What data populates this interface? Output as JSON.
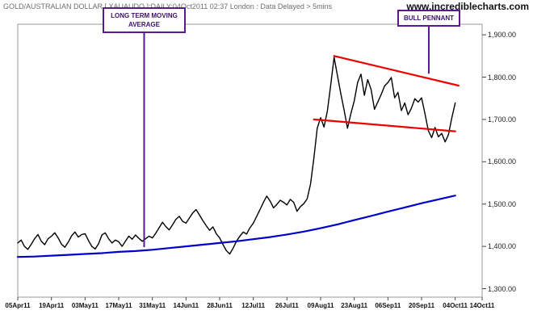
{
  "header": {
    "title": "GOLD/AUSTRALIAN DOLLAR [ XAUAUDO ]:DAILY:04Oct2011 02:37 London : Data Delayed > 5mins",
    "watermark": "www.incrediblecharts.com"
  },
  "chart_data": {
    "type": "line",
    "title": "GOLD/AUSTRALIAN DOLLAR [ XAUAUDO ]:DAILY:04Oct2011 02:37 London : Data Delayed > 5mins",
    "x_axis": {
      "unit": "trading days since 05Apr11",
      "tick_positions": [
        0,
        10,
        20,
        30,
        40,
        50,
        60,
        70,
        80,
        90,
        100,
        110,
        120,
        130,
        138
      ],
      "tick_labels": [
        "05Apr11",
        "19Apr11",
        "03May11",
        "17May11",
        "31May11",
        "14Jun11",
        "28Jun11",
        "12Jul11",
        "26Jul11",
        "09Aug11",
        "23Aug11",
        "06Sep11",
        "20Sep11",
        "04Oct11",
        "14Oct11"
      ]
    },
    "y_axis": {
      "tick_values": [
        1900,
        1800,
        1700,
        1600,
        1500,
        1400,
        1300
      ],
      "tick_labels": [
        "1,900.00",
        "1,800.00",
        "1,700.00",
        "1,600.00",
        "1,500.00",
        "1,400.00",
        "1,300.00"
      ],
      "range": [
        1280,
        1925
      ]
    },
    "x_range": [
      0,
      138
    ],
    "grid": false,
    "legend": "none",
    "series": [
      {
        "name": "xauaud-daily-close",
        "color": "#000000",
        "width": 1.4,
        "points": [
          [
            0,
            1408
          ],
          [
            1,
            1415
          ],
          [
            2,
            1400
          ],
          [
            3,
            1393
          ],
          [
            4,
            1405
          ],
          [
            5,
            1418
          ],
          [
            6,
            1428
          ],
          [
            7,
            1412
          ],
          [
            8,
            1404
          ],
          [
            9,
            1418
          ],
          [
            10,
            1424
          ],
          [
            11,
            1432
          ],
          [
            12,
            1420
          ],
          [
            13,
            1405
          ],
          [
            14,
            1398
          ],
          [
            15,
            1410
          ],
          [
            16,
            1425
          ],
          [
            17,
            1434
          ],
          [
            18,
            1422
          ],
          [
            19,
            1428
          ],
          [
            20,
            1430
          ],
          [
            21,
            1414
          ],
          [
            22,
            1400
          ],
          [
            23,
            1394
          ],
          [
            24,
            1406
          ],
          [
            25,
            1427
          ],
          [
            26,
            1432
          ],
          [
            27,
            1418
          ],
          [
            28,
            1408
          ],
          [
            29,
            1415
          ],
          [
            30,
            1411
          ],
          [
            31,
            1400
          ],
          [
            32,
            1412
          ],
          [
            33,
            1424
          ],
          [
            34,
            1417
          ],
          [
            35,
            1427
          ],
          [
            36,
            1419
          ],
          [
            37,
            1412
          ],
          [
            38,
            1418
          ],
          [
            39,
            1424
          ],
          [
            40,
            1420
          ],
          [
            41,
            1431
          ],
          [
            42,
            1444
          ],
          [
            43,
            1457
          ],
          [
            44,
            1447
          ],
          [
            45,
            1439
          ],
          [
            46,
            1451
          ],
          [
            47,
            1464
          ],
          [
            48,
            1471
          ],
          [
            49,
            1459
          ],
          [
            50,
            1455
          ],
          [
            51,
            1467
          ],
          [
            52,
            1479
          ],
          [
            53,
            1487
          ],
          [
            54,
            1474
          ],
          [
            55,
            1461
          ],
          [
            56,
            1449
          ],
          [
            57,
            1438
          ],
          [
            58,
            1446
          ],
          [
            59,
            1430
          ],
          [
            60,
            1420
          ],
          [
            61,
            1404
          ],
          [
            62,
            1390
          ],
          [
            63,
            1382
          ],
          [
            64,
            1396
          ],
          [
            65,
            1412
          ],
          [
            66,
            1424
          ],
          [
            67,
            1434
          ],
          [
            68,
            1429
          ],
          [
            69,
            1444
          ],
          [
            70,
            1455
          ],
          [
            71,
            1471
          ],
          [
            72,
            1487
          ],
          [
            73,
            1504
          ],
          [
            74,
            1519
          ],
          [
            75,
            1507
          ],
          [
            76,
            1491
          ],
          [
            77,
            1499
          ],
          [
            78,
            1509
          ],
          [
            79,
            1504
          ],
          [
            80,
            1498
          ],
          [
            81,
            1511
          ],
          [
            82,
            1504
          ],
          [
            83,
            1483
          ],
          [
            84,
            1494
          ],
          [
            85,
            1501
          ],
          [
            86,
            1512
          ],
          [
            87,
            1547
          ],
          [
            88,
            1609
          ],
          [
            89,
            1679
          ],
          [
            90,
            1704
          ],
          [
            91,
            1682
          ],
          [
            92,
            1719
          ],
          [
            93,
            1781
          ],
          [
            94,
            1847
          ],
          [
            95,
            1804
          ],
          [
            96,
            1761
          ],
          [
            97,
            1721
          ],
          [
            98,
            1679
          ],
          [
            99,
            1714
          ],
          [
            100,
            1744
          ],
          [
            101,
            1787
          ],
          [
            102,
            1807
          ],
          [
            103,
            1757
          ],
          [
            104,
            1794
          ],
          [
            105,
            1771
          ],
          [
            106,
            1724
          ],
          [
            107,
            1741
          ],
          [
            108,
            1759
          ],
          [
            109,
            1779
          ],
          [
            110,
            1787
          ],
          [
            111,
            1799
          ],
          [
            112,
            1751
          ],
          [
            113,
            1764
          ],
          [
            114,
            1721
          ],
          [
            115,
            1739
          ],
          [
            116,
            1711
          ],
          [
            117,
            1727
          ],
          [
            118,
            1749
          ],
          [
            119,
            1741
          ],
          [
            120,
            1751
          ],
          [
            121,
            1714
          ],
          [
            122,
            1674
          ],
          [
            123,
            1657
          ],
          [
            124,
            1681
          ],
          [
            125,
            1659
          ],
          [
            126,
            1667
          ],
          [
            127,
            1647
          ],
          [
            128,
            1664
          ],
          [
            129,
            1704
          ],
          [
            130,
            1739
          ]
        ]
      },
      {
        "name": "long-term-moving-average",
        "color": "#0000cc",
        "width": 2.2,
        "points": [
          [
            0,
            1375
          ],
          [
            5,
            1376
          ],
          [
            10,
            1378
          ],
          [
            15,
            1380
          ],
          [
            20,
            1382
          ],
          [
            25,
            1384
          ],
          [
            30,
            1387
          ],
          [
            35,
            1389
          ],
          [
            40,
            1392
          ],
          [
            45,
            1396
          ],
          [
            50,
            1400
          ],
          [
            55,
            1404
          ],
          [
            60,
            1408
          ],
          [
            65,
            1412
          ],
          [
            70,
            1417
          ],
          [
            75,
            1422
          ],
          [
            80,
            1428
          ],
          [
            85,
            1435
          ],
          [
            90,
            1443
          ],
          [
            95,
            1452
          ],
          [
            100,
            1462
          ],
          [
            105,
            1472
          ],
          [
            110,
            1482
          ],
          [
            115,
            1492
          ],
          [
            120,
            1502
          ],
          [
            125,
            1511
          ],
          [
            130,
            1520
          ]
        ]
      },
      {
        "name": "bull-pennant-upper-trendline",
        "color": "#ee0000",
        "width": 2.2,
        "points": [
          [
            94,
            1850
          ],
          [
            131,
            1780
          ]
        ]
      },
      {
        "name": "bull-pennant-lower-trendline",
        "color": "#ee0000",
        "width": 2.2,
        "points": [
          [
            88,
            1700
          ],
          [
            130,
            1672
          ]
        ]
      }
    ],
    "annotations": [
      {
        "id": "ma",
        "label": "LONG TERM MOVING AVERAGE",
        "target_y": 1398,
        "color": "#5b1a8b"
      },
      {
        "id": "pennant",
        "label": "BULL PENNANT",
        "target_y": 1808,
        "color": "#5b1a8b"
      }
    ]
  }
}
